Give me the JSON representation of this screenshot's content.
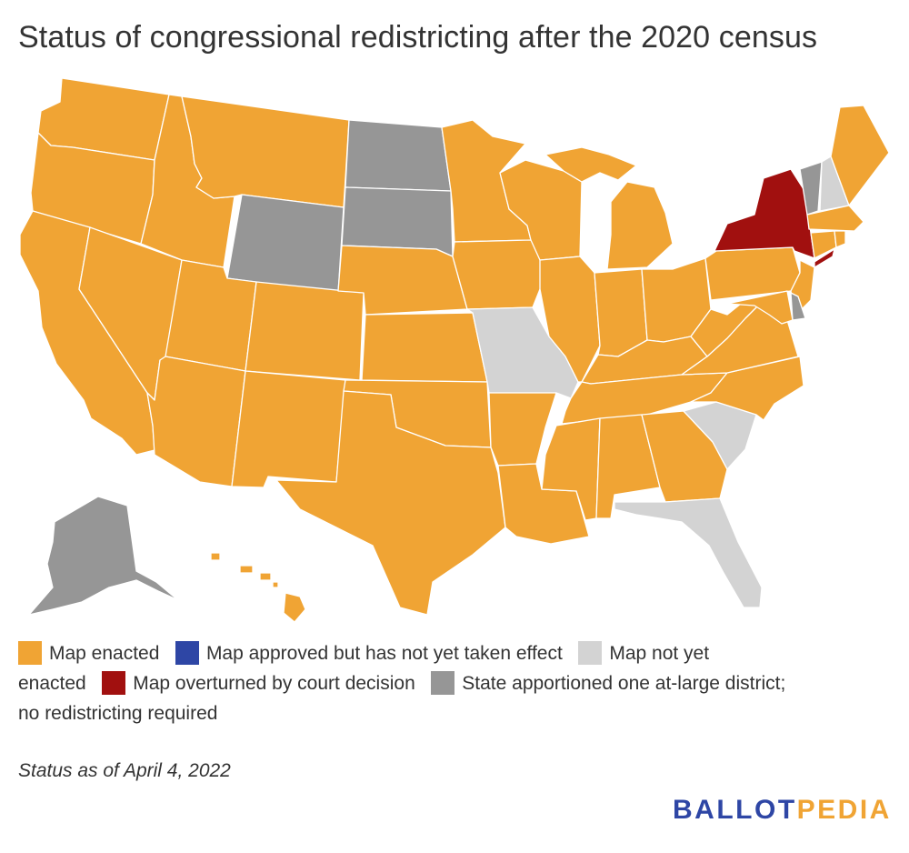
{
  "title": "Status of congressional redistricting after the 2020 census",
  "colors": {
    "enacted": "#f0a434",
    "approved_not_effective": "#2e46a5",
    "not_yet_enacted": "#d3d3d3",
    "overturned": "#a1100f",
    "at_large": "#969696"
  },
  "legend": {
    "enacted": "Map enacted",
    "approved_not_effective": "Map approved but has not yet taken effect",
    "not_yet_enacted_a": "Map not yet",
    "not_yet_enacted_b": "enacted",
    "overturned": "Map overturned by court decision",
    "at_large_a": "State apportioned one at-large district;",
    "at_large_b": "no redistricting required"
  },
  "note": "Status as of April 4, 2022",
  "brand": {
    "part1": "BALLOT",
    "part2": "PEDIA",
    "color1": "#2e46a5",
    "color2": "#f0a434"
  },
  "states": {
    "WA": "enacted",
    "OR": "enacted",
    "CA": "enacted",
    "ID": "enacted",
    "NV": "enacted",
    "MT": "enacted",
    "WY": "at_large",
    "UT": "enacted",
    "AZ": "enacted",
    "CO": "enacted",
    "NM": "enacted",
    "ND": "at_large",
    "SD": "at_large",
    "NE": "enacted",
    "KS": "enacted",
    "OK": "enacted",
    "TX": "enacted",
    "MN": "enacted",
    "IA": "enacted",
    "MO": "not_yet_enacted",
    "AR": "enacted",
    "LA": "enacted",
    "WI": "enacted",
    "IL": "enacted",
    "MI": "enacted",
    "IN": "enacted",
    "OH": "enacted",
    "KY": "enacted",
    "TN": "enacted",
    "MS": "enacted",
    "AL": "enacted",
    "GA": "enacted",
    "FL": "not_yet_enacted",
    "SC": "not_yet_enacted",
    "NC": "enacted",
    "VA": "enacted",
    "WV": "enacted",
    "PA": "enacted",
    "NY": "overturned",
    "VT": "at_large",
    "NH": "not_yet_enacted",
    "ME": "enacted",
    "MA": "enacted",
    "CT": "enacted",
    "RI": "enacted",
    "NJ": "enacted",
    "DE": "at_large",
    "MD": "enacted",
    "AK": "at_large",
    "HI": "enacted"
  }
}
